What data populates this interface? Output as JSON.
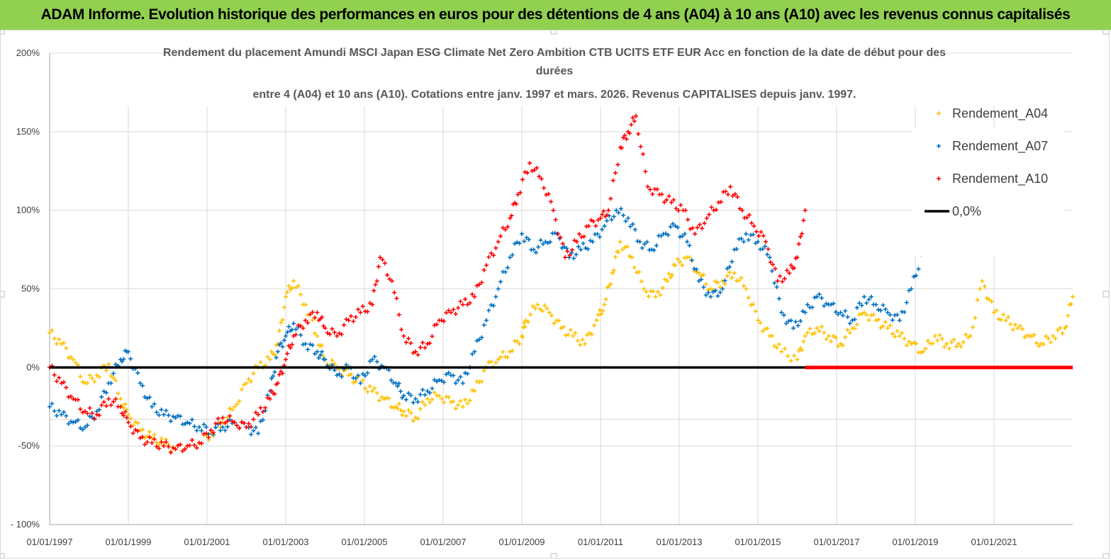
{
  "header": {
    "title": "ADAM Informe. Evolution historique des performances en euros pour des détentions de 4 ans (A04) à 10 ans (A10) avec les revenus connus capitalisés"
  },
  "chart_data": {
    "type": "scatter",
    "title_lines": [
      "Rendement du placement Amundi MSCI Japan ESG Climate Net Zero Ambition CTB UCITS ETF EUR Acc en fonction de la date de début pour des",
      "durées",
      "entre 4 (A04) et 10 ans (A10). Cotations entre janv. 1997 et mars. 2026. Revenus CAPITALISES depuis janv. 1997."
    ],
    "x_ticks": [
      "01/01/1997",
      "01/01/1999",
      "01/01/2001",
      "01/01/2003",
      "01/01/2005",
      "01/01/2007",
      "01/01/2009",
      "01/01/2011",
      "01/01/2013",
      "01/01/2015",
      "01/01/2017",
      "01/01/2019",
      "01/01/2021"
    ],
    "x_range": [
      1997.0,
      2023.0
    ],
    "y_ticks": [
      "200%",
      "150%",
      "100%",
      "50%",
      "0%",
      "-50%",
      "- 100%"
    ],
    "y_tick_values": [
      200,
      150,
      100,
      50,
      0,
      -50,
      -100
    ],
    "y_range": [
      -100,
      200
    ],
    "legend": [
      "Rendement_A04",
      "Rendement_A07",
      "Rendement_A10",
      "0,0%"
    ],
    "series": [
      {
        "name": "Rendement_A04",
        "color": "#ffc000",
        "x": [
          1997.0,
          1997.3,
          1997.6,
          1997.9,
          1998.2,
          1998.5,
          1998.8,
          1999.0,
          1999.3,
          1999.6,
          1999.9,
          2000.2,
          2000.5,
          2000.8,
          2001.1,
          2001.4,
          2001.7,
          2002.0,
          2002.3,
          2002.6,
          2002.8,
          2003.0,
          2003.2,
          2003.5,
          2003.8,
          2004.0,
          2004.3,
          2004.6,
          2004.9,
          2005.2,
          2005.5,
          2005.8,
          2006.0,
          2006.3,
          2006.6,
          2006.9,
          2007.2,
          2007.5,
          2007.8,
          2008.1,
          2008.4,
          2008.7,
          2009.0,
          2009.1,
          2009.4,
          2009.7,
          2010.0,
          2010.3,
          2010.6,
          2010.9,
          2011.1,
          2011.3,
          2011.5,
          2011.8,
          2012.1,
          2012.4,
          2012.7,
          2012.9,
          2013.2,
          2013.5,
          2013.8,
          2014.1,
          2014.4,
          2014.7,
          2015.0,
          2015.3,
          2015.6,
          2016.0,
          2016.2,
          2016.5,
          2016.8,
          2017.1,
          2017.4,
          2017.7,
          2018.0,
          2018.3,
          2018.6,
          2018.9,
          2019.2,
          2019.5,
          2019.8,
          2020.1,
          2020.4,
          2020.7,
          2021.0,
          2021.3,
          2021.6,
          2021.9,
          2022.2,
          2022.5,
          2022.8,
          2023.0
        ],
        "y": [
          22,
          15,
          5,
          -10,
          -5,
          2,
          -20,
          -30,
          -40,
          -45,
          -48,
          -52,
          -50,
          -48,
          -42,
          -35,
          -25,
          -10,
          0,
          5,
          15,
          45,
          55,
          40,
          20,
          5,
          0,
          -5,
          -10,
          -15,
          -20,
          -25,
          -28,
          -32,
          -20,
          -18,
          -22,
          -25,
          -15,
          0,
          5,
          10,
          20,
          30,
          40,
          35,
          25,
          20,
          15,
          30,
          40,
          60,
          80,
          70,
          50,
          45,
          55,
          65,
          70,
          60,
          50,
          55,
          60,
          50,
          30,
          20,
          10,
          5,
          20,
          25,
          20,
          15,
          25,
          35,
          30,
          25,
          20,
          15,
          10,
          20,
          15,
          15,
          20,
          55,
          35,
          30,
          25,
          20,
          15,
          20,
          25,
          45
        ]
      },
      {
        "name": "Rendement_A07",
        "color": "#0070c0",
        "x": [
          1997.0,
          1997.3,
          1997.6,
          1997.9,
          1998.2,
          1998.5,
          1998.8,
          1999.0,
          1999.3,
          1999.6,
          1999.9,
          2000.2,
          2000.5,
          2000.8,
          2001.1,
          2001.4,
          2001.7,
          2002.0,
          2002.3,
          2002.6,
          2002.8,
          2003.0,
          2003.2,
          2003.5,
          2003.8,
          2004.0,
          2004.3,
          2004.6,
          2004.9,
          2005.2,
          2005.5,
          2005.8,
          2006.0,
          2006.3,
          2006.6,
          2006.9,
          2007.2,
          2007.5,
          2007.8,
          2008.1,
          2008.4,
          2008.7,
          2009.0,
          2009.3,
          2009.6,
          2009.9,
          2010.2,
          2010.5,
          2010.8,
          2011.1,
          2011.4,
          2011.7,
          2012.0,
          2012.3,
          2012.6,
          2012.9,
          2013.2,
          2013.5,
          2013.8,
          2014.1,
          2014.4,
          2014.7,
          2015.0,
          2015.3,
          2015.6,
          2015.9,
          2016.2,
          2016.5,
          2016.8,
          2017.1,
          2017.4,
          2017.7,
          2018.0,
          2018.3,
          2018.6,
          2018.9,
          2019.2
        ],
        "y": [
          -25,
          -30,
          -35,
          -38,
          -28,
          -10,
          5,
          10,
          -10,
          -25,
          -30,
          -32,
          -35,
          -38,
          -40,
          -38,
          -35,
          -38,
          -42,
          -15,
          10,
          20,
          28,
          15,
          10,
          5,
          -5,
          0,
          -10,
          5,
          0,
          -10,
          -18,
          -20,
          -15,
          -8,
          -5,
          -10,
          10,
          30,
          50,
          70,
          85,
          75,
          80,
          85,
          70,
          75,
          80,
          90,
          100,
          95,
          80,
          75,
          85,
          90,
          80,
          55,
          45,
          50,
          75,
          85,
          80,
          70,
          35,
          25,
          35,
          45,
          40,
          35,
          30,
          45,
          40,
          35,
          30,
          50,
          75
        ]
      },
      {
        "name": "Rendement_A10",
        "color": "#ff0000",
        "x": [
          1997.0,
          1997.3,
          1997.6,
          1997.9,
          1998.2,
          1998.5,
          1998.8,
          1999.0,
          1999.3,
          1999.6,
          1999.9,
          2000.2,
          2000.5,
          2000.8,
          2001.1,
          2001.4,
          2001.7,
          2002.0,
          2002.3,
          2002.6,
          2002.8,
          2003.0,
          2003.2,
          2003.5,
          2003.8,
          2004.0,
          2004.3,
          2004.6,
          2004.9,
          2005.2,
          2005.4,
          2005.7,
          2006.0,
          2006.3,
          2006.6,
          2006.9,
          2007.2,
          2007.5,
          2007.8,
          2008.1,
          2008.4,
          2008.7,
          2008.9,
          2009.2,
          2009.5,
          2009.8,
          2010.1,
          2010.4,
          2010.7,
          2011.0,
          2011.2,
          2011.5,
          2011.7,
          2011.9,
          2012.2,
          2012.5,
          2012.8,
          2013.1,
          2013.4,
          2013.7,
          2014.0,
          2014.3,
          2014.6,
          2014.9,
          2015.2,
          2015.5,
          2015.8,
          2016.0,
          2016.2
        ],
        "y": [
          0,
          -10,
          -20,
          -28,
          -30,
          -20,
          -25,
          -35,
          -45,
          -48,
          -50,
          -52,
          -50,
          -48,
          -40,
          -32,
          -35,
          -38,
          -30,
          -20,
          -10,
          5,
          20,
          30,
          35,
          25,
          20,
          30,
          35,
          40,
          70,
          55,
          20,
          10,
          15,
          30,
          35,
          40,
          45,
          65,
          80,
          95,
          110,
          130,
          120,
          100,
          70,
          80,
          90,
          95,
          100,
          140,
          150,
          160,
          115,
          110,
          105,
          100,
          85,
          95,
          105,
          115,
          100,
          90,
          80,
          55,
          60,
          70,
          100
        ]
      },
      {
        "name": "0,0%",
        "color": "#000000",
        "x": [
          1997.0,
          2016.2
        ],
        "y": [
          0,
          0
        ]
      }
    ]
  }
}
